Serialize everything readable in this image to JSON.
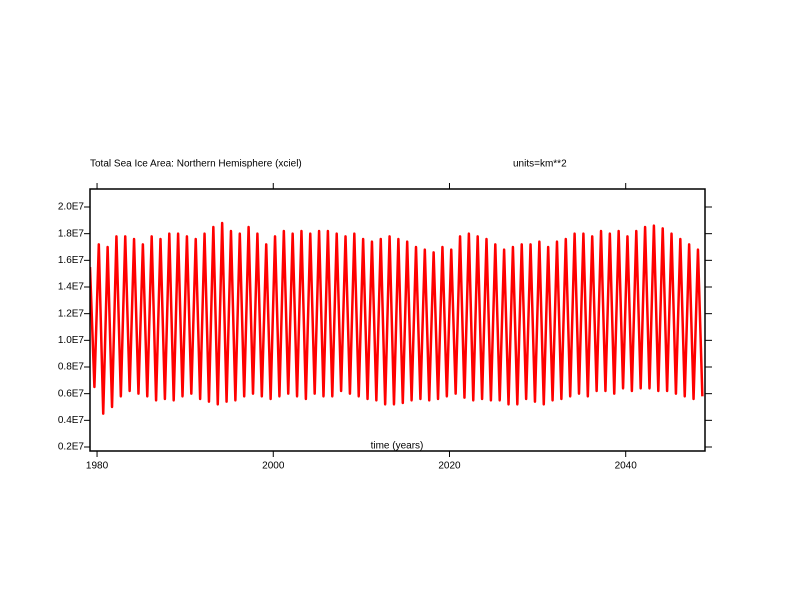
{
  "chart_data": {
    "type": "line",
    "title": "Total Sea Ice Area: Northern Hemisphere (xciel)",
    "subtitle": "units=km**2",
    "x_label": "time (years)",
    "xlim": [
      1979.2,
      2049
    ],
    "xticks": [
      1980,
      2000,
      2020,
      2040
    ],
    "ylim": [
      1700000,
      21350000
    ],
    "yticks": [
      {
        "value": 2000000,
        "label": "0.2E7"
      },
      {
        "value": 4000000,
        "label": "0.4E7"
      },
      {
        "value": 6000000,
        "label": "0.6E7"
      },
      {
        "value": 8000000,
        "label": "0.8E7"
      },
      {
        "value": 10000000,
        "label": "1.0E7"
      },
      {
        "value": 12000000,
        "label": "1.2E7"
      },
      {
        "value": 14000000,
        "label": "1.4E7"
      },
      {
        "value": 16000000,
        "label": "1.6E7"
      },
      {
        "value": 18000000,
        "label": "1.8E7"
      },
      {
        "value": 20000000,
        "label": "2.0E7"
      }
    ],
    "x": [
      1979.2,
      1979.7,
      1980.2,
      1980.7,
      1981.2,
      1981.7,
      1982.2,
      1982.7,
      1983.2,
      1983.7,
      1984.2,
      1984.7,
      1985.2,
      1985.7,
      1986.2,
      1986.7,
      1987.2,
      1987.7,
      1988.2,
      1988.7,
      1989.2,
      1989.7,
      1990.2,
      1990.7,
      1991.2,
      1991.7,
      1992.2,
      1992.7,
      1993.2,
      1993.7,
      1994.2,
      1994.7,
      1995.2,
      1995.7,
      1996.2,
      1996.7,
      1997.2,
      1997.7,
      1998.2,
      1998.7,
      1999.2,
      1999.7,
      2000.2,
      2000.7,
      2001.2,
      2001.7,
      2002.2,
      2002.7,
      2003.2,
      2003.7,
      2004.2,
      2004.7,
      2005.2,
      2005.7,
      2006.2,
      2006.7,
      2007.2,
      2007.7,
      2008.2,
      2008.7,
      2009.2,
      2009.7,
      2010.2,
      2010.7,
      2011.2,
      2011.7,
      2012.2,
      2012.7,
      2013.2,
      2013.7,
      2014.2,
      2014.7,
      2015.2,
      2015.7,
      2016.2,
      2016.7,
      2017.2,
      2017.7,
      2018.2,
      2018.7,
      2019.2,
      2019.7,
      2020.2,
      2020.7,
      2021.2,
      2021.7,
      2022.2,
      2022.7,
      2023.2,
      2023.7,
      2024.2,
      2024.7,
      2025.2,
      2025.7,
      2026.2,
      2026.7,
      2027.2,
      2027.7,
      2028.2,
      2028.7,
      2029.2,
      2029.7,
      2030.2,
      2030.7,
      2031.2,
      2031.7,
      2032.2,
      2032.7,
      2033.2,
      2033.7,
      2034.2,
      2034.7,
      2035.2,
      2035.7,
      2036.2,
      2036.7,
      2037.2,
      2037.7,
      2038.2,
      2038.7,
      2039.2,
      2039.7,
      2040.2,
      2040.7,
      2041.2,
      2041.7,
      2042.2,
      2042.7,
      2043.2,
      2043.7,
      2044.2,
      2044.7,
      2045.2,
      2045.7,
      2046.2,
      2046.7,
      2047.2,
      2047.7,
      2048.2,
      2048.7
    ],
    "series": [
      {
        "color": "#ff0000",
        "values": [
          15500000.0,
          6500000.0,
          17200000.0,
          4500000.0,
          17000000.0,
          5000000.0,
          17800000.0,
          5800000.0,
          17800000.0,
          6200000.0,
          17600000.0,
          6000000.0,
          17200000.0,
          5800000.0,
          17800000.0,
          5500000.0,
          17600000.0,
          5600000.0,
          18000000.0,
          5500000.0,
          18000000.0,
          5800000.0,
          17800000.0,
          6000000.0,
          17600000.0,
          5600000.0,
          18000000.0,
          5400000.0,
          18500000.0,
          5200000.0,
          18800000.0,
          5400000.0,
          18200000.0,
          5500000.0,
          18000000.0,
          5800000.0,
          18500000.0,
          6000000.0,
          18000000.0,
          5800000.0,
          17200000.0,
          5600000.0,
          17800000.0,
          5800000.0,
          18200000.0,
          6000000.0,
          18000000.0,
          5800000.0,
          18200000.0,
          5600000.0,
          18000000.0,
          6000000.0,
          18200000.0,
          5800000.0,
          18200000.0,
          5800000.0,
          18000000.0,
          6200000.0,
          17800000.0,
          6000000.0,
          18000000.0,
          5800000.0,
          17600000.0,
          5600000.0,
          17400000.0,
          5500000.0,
          17600000.0,
          5200000.0,
          17800000.0,
          5200000.0,
          17600000.0,
          5300000.0,
          17400000.0,
          5500000.0,
          17000000.0,
          5600000.0,
          16800000.0,
          5500000.0,
          16600000.0,
          5600000.0,
          17000000.0,
          5800000.0,
          16800000.0,
          6000000.0,
          17800000.0,
          5700000.0,
          18000000.0,
          5500000.0,
          17800000.0,
          5600000.0,
          17600000.0,
          5500000.0,
          17200000.0,
          5500000.0,
          16800000.0,
          5200000.0,
          17000000.0,
          5200000.0,
          17200000.0,
          5600000.0,
          17200000.0,
          5400000.0,
          17400000.0,
          5200000.0,
          17000000.0,
          5500000.0,
          17400000.0,
          5600000.0,
          17600000.0,
          5800000.0,
          18000000.0,
          6000000.0,
          18000000.0,
          5800000.0,
          17800000.0,
          6200000.0,
          18200000.0,
          6200000.0,
          18000000.0,
          6000000.0,
          18200000.0,
          6400000.0,
          17800000.0,
          6200000.0,
          18200000.0,
          6400000.0,
          18500000.0,
          6400000.0,
          18600000.0,
          6200000.0,
          18400000.0,
          6200000.0,
          18000000.0,
          6000000.0,
          17600000.0,
          5800000.0,
          17200000.0,
          5600000.0,
          16800000.0,
          5800000.0
        ]
      }
    ]
  }
}
